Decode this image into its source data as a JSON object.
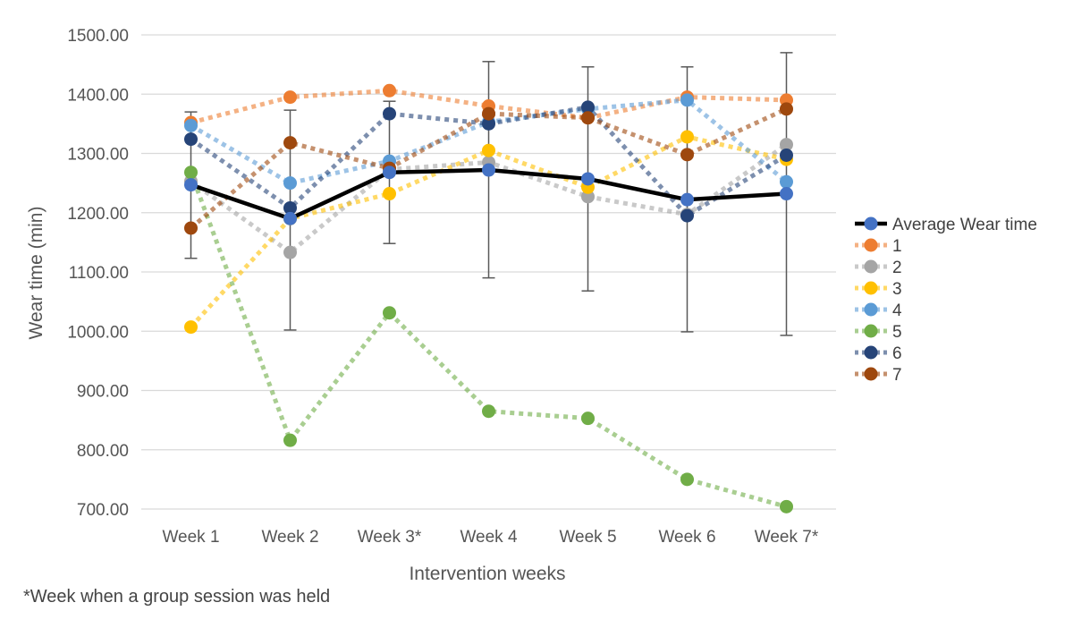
{
  "chart_data": {
    "type": "line",
    "xlabel": "Intervention weeks",
    "ylabel": "Wear time (min)",
    "ylim": [
      700,
      1500
    ],
    "ytick_step": 100,
    "y_tick_labels": [
      "700.00",
      "800.00",
      "900.00",
      "1000.00",
      "1100.00",
      "1200.00",
      "1300.00",
      "1400.00",
      "1500.00"
    ],
    "grid": "horizontal",
    "legend_position": "right",
    "categories": [
      "Week 1",
      "Week 2",
      "Week 3*",
      "Week 4",
      "Week 5",
      "Week 6",
      "Week 7*"
    ],
    "series": [
      {
        "name": "1",
        "color": "#ED7D31",
        "style": "dotted",
        "values": [
          1352,
          1395,
          1406,
          1380,
          1360,
          1395,
          1390
        ]
      },
      {
        "name": "2",
        "color": "#A5A5A5",
        "style": "dotted",
        "values": [
          1253,
          1133,
          1273,
          1285,
          1227,
          1197,
          1315
        ]
      },
      {
        "name": "3",
        "color": "#FFC000",
        "style": "dotted",
        "values": [
          1007,
          1190,
          1232,
          1305,
          1243,
          1328,
          1290
        ]
      },
      {
        "name": "4",
        "color": "#5B9BD5",
        "style": "dotted",
        "values": [
          1347,
          1250,
          1287,
          1353,
          1375,
          1390,
          1252
        ]
      },
      {
        "name": "5",
        "color": "#70AD47",
        "style": "dotted",
        "values": [
          1268,
          816,
          1031,
          865,
          853,
          750,
          704
        ]
      },
      {
        "name": "6",
        "color": "#264478",
        "style": "dotted",
        "values": [
          1324,
          1208,
          1367,
          1350,
          1378,
          1195,
          1297
        ]
      },
      {
        "name": "7",
        "color": "#9E480E",
        "style": "dotted",
        "values": [
          1174,
          1318,
          1275,
          1367,
          1360,
          1298,
          1375
        ]
      },
      {
        "name": "Average Wear time",
        "color": "#000000",
        "marker_color": "#4472C4",
        "style": "solid",
        "values": [
          1247,
          1190,
          1268,
          1272,
          1257,
          1222,
          1232
        ],
        "error_bars": [
          [
            1123,
            1370
          ],
          [
            1002,
            1373
          ],
          [
            1148,
            1388
          ],
          [
            1090,
            1455
          ],
          [
            1068,
            1446
          ],
          [
            999,
            1446
          ],
          [
            993,
            1470
          ]
        ]
      }
    ],
    "legend": [
      {
        "label": "Average Wear time",
        "color": "#000000",
        "marker_color": "#4472C4"
      },
      {
        "label": "1",
        "color": "#ED7D31"
      },
      {
        "label": "2",
        "color": "#A5A5A5"
      },
      {
        "label": "3",
        "color": "#FFC000"
      },
      {
        "label": "4",
        "color": "#5B9BD5"
      },
      {
        "label": "5",
        "color": "#70AD47"
      },
      {
        "label": "6",
        "color": "#264478"
      },
      {
        "label": "7",
        "color": "#9E480E"
      }
    ],
    "footnote": "*Week when a group session was held"
  }
}
